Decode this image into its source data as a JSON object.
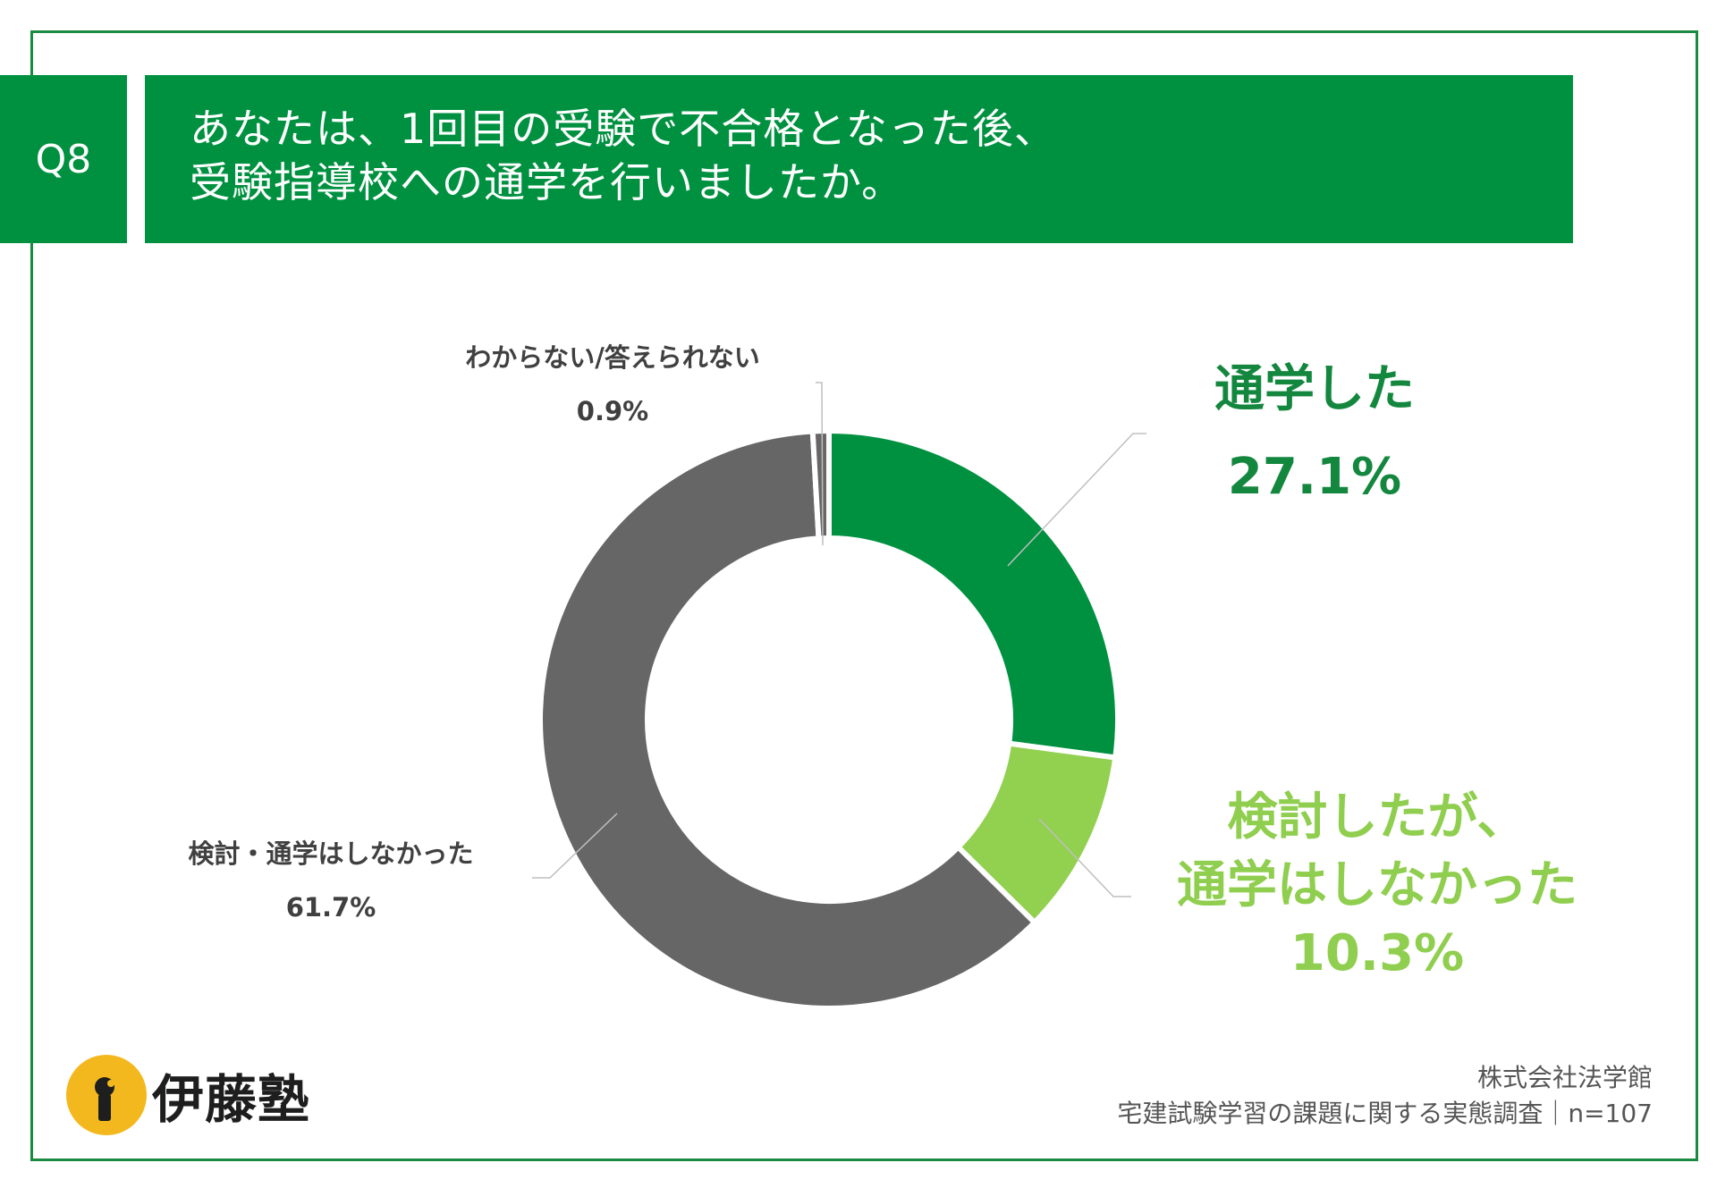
{
  "question": {
    "label": "Q8",
    "lines": [
      "あなたは、1回目の受験で不合格となった後、",
      "受験指導校への通学を行いましたか。"
    ]
  },
  "chart_data": {
    "type": "pie",
    "donut": true,
    "start_angle_deg": 0,
    "direction": "clockwise",
    "slices": [
      {
        "name": "通学した",
        "value": 27.1,
        "label": "27.1%",
        "color": "#009140"
      },
      {
        "name": "検討したが、通学はしなかった",
        "value": 10.3,
        "label": "10.3%",
        "color": "#92d050"
      },
      {
        "name": "検討・通学はしなかった",
        "value": 61.7,
        "label": "61.7%",
        "color": "#666666"
      },
      {
        "name": "わからない/答えられない",
        "value": 0.9,
        "label": "0.9%",
        "color": "#666666"
      }
    ]
  },
  "labels": {
    "attended": {
      "name": "通学した",
      "pct": "27.1%"
    },
    "considered": {
      "line1": "検討したが、",
      "line2": "通学はしなかった",
      "pct": "10.3%"
    },
    "not_considered": {
      "name": "検討・通学はしなかった",
      "pct": "61.7%"
    },
    "unknown": {
      "name": "わからない/答えられない",
      "pct": "0.9%"
    }
  },
  "logo": {
    "text": "伊藤塾"
  },
  "source": {
    "company": "株式会社法学館",
    "survey": "宅建試験学習の課題に関する実態調査｜n=107"
  },
  "colors": {
    "brand_green": "#009140",
    "light_green": "#92d050",
    "gray": "#666666",
    "logo_yellow": "#f4b81f"
  }
}
